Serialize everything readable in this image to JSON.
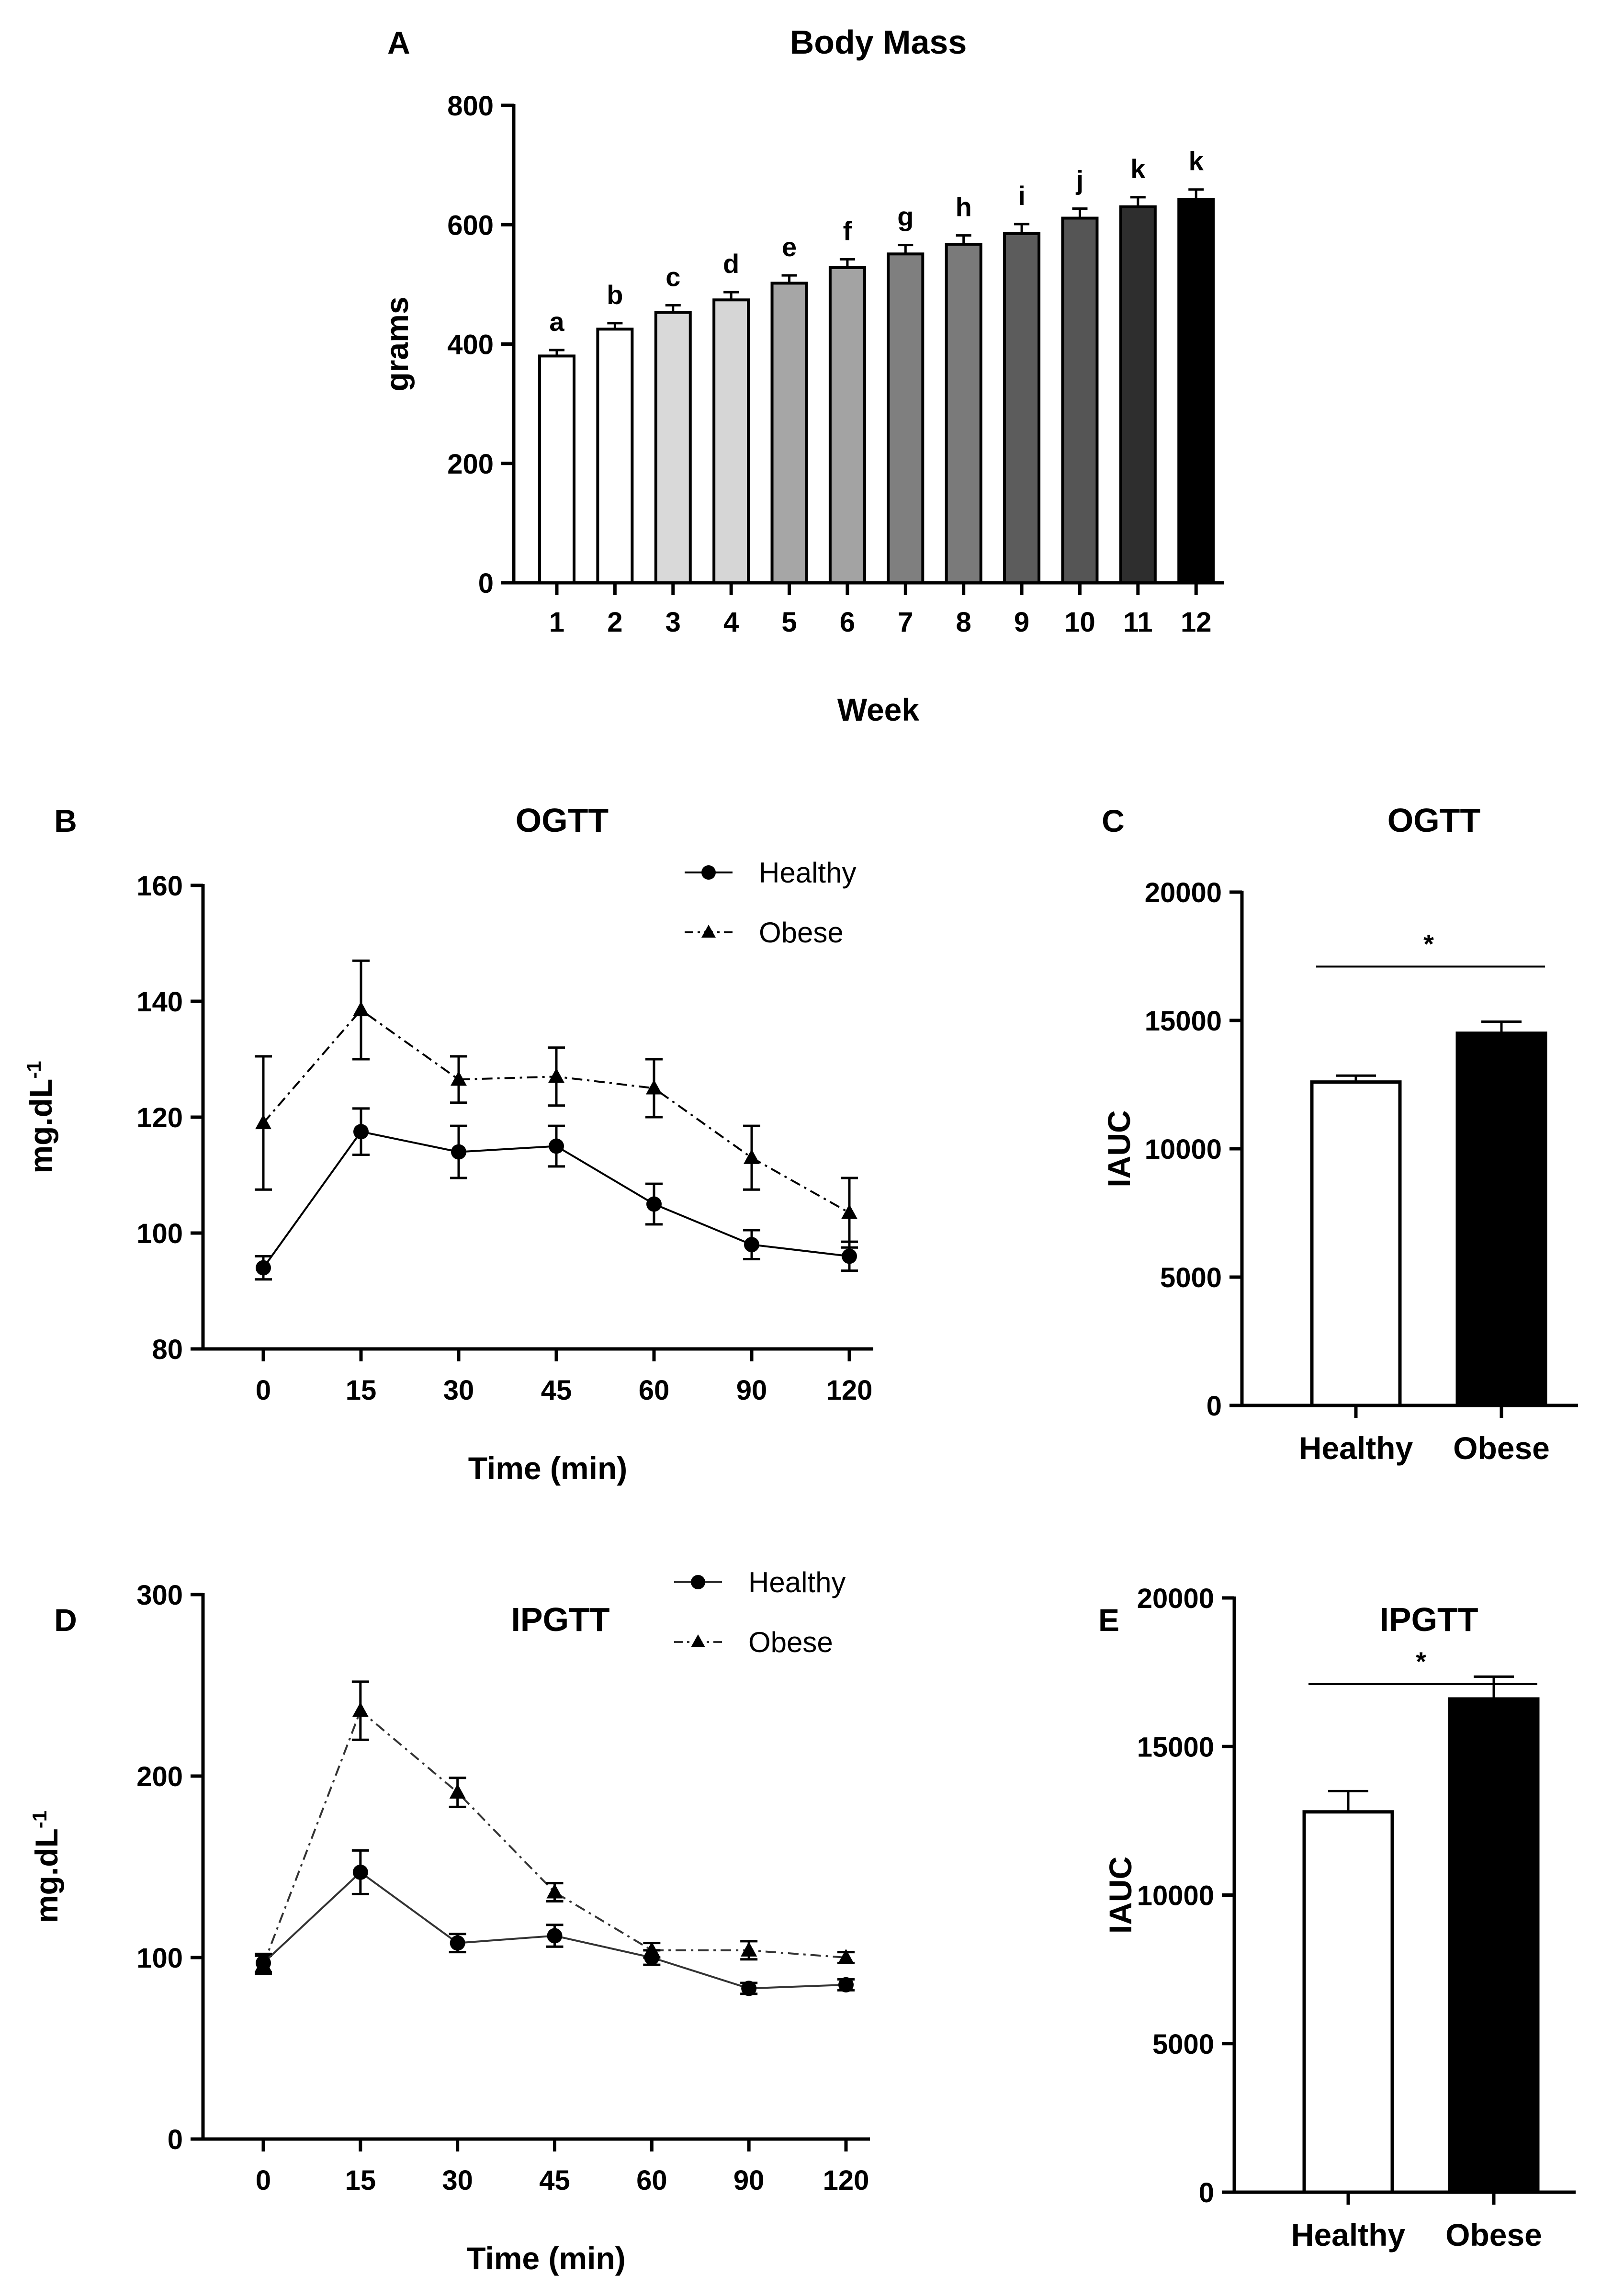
{
  "chart_data": [
    {
      "id": "A",
      "type": "bar",
      "panel_letter": "A",
      "title": "Body Mass",
      "xlabel": "Week",
      "ylabel": "grams",
      "ylim": [
        0,
        800
      ],
      "yticks": [
        0,
        200,
        400,
        600,
        800
      ],
      "categories": [
        "1",
        "2",
        "3",
        "4",
        "5",
        "6",
        "7",
        "8",
        "9",
        "10",
        "11",
        "12"
      ],
      "values": [
        380,
        425,
        453,
        474,
        502,
        528,
        551,
        567,
        585,
        611,
        630,
        642
      ],
      "errors": [
        10,
        10,
        12,
        13,
        13,
        14,
        15,
        15,
        16,
        16,
        16,
        17
      ],
      "letters": [
        "a",
        "b",
        "c",
        "d",
        "e",
        "f",
        "g",
        "h",
        "i",
        "j",
        "k",
        "k"
      ],
      "colors": [
        "#ffffff",
        "#ffffff",
        "#d9d9d9",
        "#d6d6d6",
        "#a6a6a6",
        "#a3a3a3",
        "#7f7f7f",
        "#7a7a7a",
        "#5c5c5c",
        "#555555",
        "#2e2e2e",
        "#000000"
      ]
    },
    {
      "id": "B",
      "type": "line",
      "panel_letter": "B",
      "title": "OGTT",
      "xlabel": "Time (min)",
      "ylabel": "mg.dL",
      "ylabel_sup": "-1",
      "ylim": [
        80,
        160
      ],
      "yticks": [
        80,
        100,
        120,
        140,
        160
      ],
      "x": [
        "0",
        "15",
        "30",
        "45",
        "60",
        "90",
        "120"
      ],
      "series": [
        {
          "name": "Healthy",
          "marker": "circle",
          "dash": "solid",
          "values": [
            94,
            117.5,
            114,
            115,
            105,
            98,
            96
          ],
          "errors": [
            2,
            4,
            4.5,
            3.5,
            3.5,
            2.5,
            2.5
          ]
        },
        {
          "name": "Obese",
          "marker": "triangle",
          "dash": "dashdot",
          "values": [
            119,
            138.5,
            126.5,
            127,
            125,
            113,
            103.5
          ],
          "errors": [
            11.5,
            8.5,
            4,
            5,
            5,
            5.5,
            6
          ]
        }
      ]
    },
    {
      "id": "C",
      "type": "bar",
      "panel_letter": "C",
      "title": "OGTT",
      "xlabel": "",
      "ylabel": "IAUC",
      "ylim": [
        0,
        20000
      ],
      "yticks": [
        0,
        5000,
        10000,
        15000,
        20000
      ],
      "categories": [
        "Healthy",
        "Obese"
      ],
      "values": [
        12600,
        14500
      ],
      "errors": [
        250,
        450
      ],
      "colors": [
        "#ffffff",
        "#000000"
      ],
      "significance": "*"
    },
    {
      "id": "D",
      "type": "line",
      "panel_letter": "D",
      "title": "IPGTT",
      "xlabel": "Time (min)",
      "ylabel": "mg.dL",
      "ylabel_sup": "-1",
      "ylim": [
        0,
        300
      ],
      "yticks": [
        0,
        100,
        200,
        300
      ],
      "x": [
        "0",
        "15",
        "30",
        "45",
        "60",
        "90",
        "120"
      ],
      "series": [
        {
          "name": "Healthy",
          "marker": "circle",
          "dash": "solid",
          "values": [
            97,
            147,
            108,
            112,
            100,
            83,
            85
          ],
          "errors": [
            5,
            12,
            5,
            6,
            4,
            3,
            3
          ]
        },
        {
          "name": "Obese",
          "marker": "triangle",
          "dash": "dashdot",
          "values": [
            96,
            236,
            191,
            136,
            104,
            104,
            100
          ],
          "errors": [
            5,
            16,
            8,
            5,
            4,
            5,
            3
          ]
        }
      ]
    },
    {
      "id": "E",
      "type": "bar",
      "panel_letter": "E",
      "title": "IPGTT",
      "xlabel": "",
      "ylabel": "IAUC",
      "ylim": [
        0,
        20000
      ],
      "yticks": [
        0,
        5000,
        10000,
        15000,
        20000
      ],
      "categories": [
        "Healthy",
        "Obese"
      ],
      "values": [
        12800,
        16600
      ],
      "errors": [
        700,
        750
      ],
      "colors": [
        "#ffffff",
        "#000000"
      ],
      "significance": "*"
    }
  ]
}
